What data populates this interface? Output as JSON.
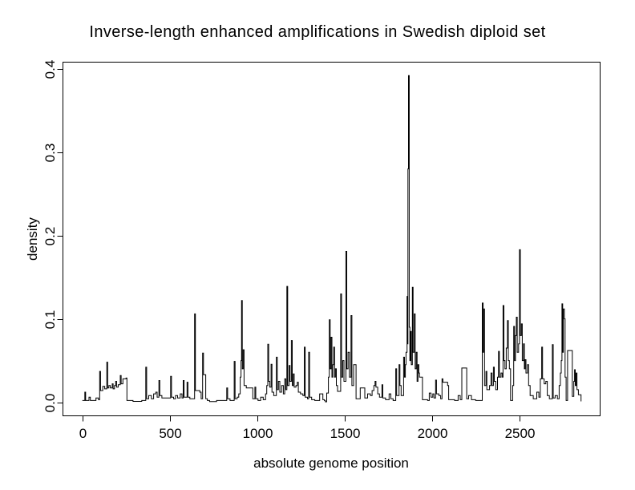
{
  "page": {
    "background": "#ffffff",
    "foreground": "#000000"
  },
  "chart_data": {
    "type": "line",
    "subtype": "step-density-profile",
    "title": "Inverse-length enhanced amplifications in Swedish diploid set",
    "xlabel": "absolute genome position",
    "ylabel": "density",
    "xlim": [
      -110,
      2960
    ],
    "ylim": [
      -0.016,
      0.408
    ],
    "x_ticks": [
      0,
      500,
      1000,
      1500,
      2000,
      2500
    ],
    "x_tick_labels": [
      "0",
      "500",
      "1000",
      "1500",
      "2000",
      "2500"
    ],
    "y_ticks": [
      0.0,
      0.1,
      0.2,
      0.3,
      0.4
    ],
    "y_tick_labels": [
      "0.0",
      "0.1",
      "0.2",
      "0.3",
      "0.4"
    ],
    "grid": false,
    "legend": "none",
    "frame_box": true,
    "line_color": "#000000",
    "background_color": "#ffffff",
    "max_point": {
      "x": 1866,
      "y": 0.392
    },
    "series": [
      [
        0,
        0.002
      ],
      [
        14,
        0.012
      ],
      [
        19,
        0.002
      ],
      [
        38,
        0.006
      ],
      [
        46,
        0.002
      ],
      [
        60,
        0.002
      ],
      [
        78,
        0.005
      ],
      [
        92,
        0.003
      ],
      [
        99,
        0.037
      ],
      [
        104,
        0.014
      ],
      [
        117,
        0.019
      ],
      [
        128,
        0.016
      ],
      [
        140,
        0.048
      ],
      [
        145,
        0.017
      ],
      [
        152,
        0.02
      ],
      [
        160,
        0.017
      ],
      [
        171,
        0.022
      ],
      [
        176,
        0.016
      ],
      [
        184,
        0.02
      ],
      [
        191,
        0.025
      ],
      [
        196,
        0.018
      ],
      [
        205,
        0.021
      ],
      [
        217,
        0.032
      ],
      [
        222,
        0.022
      ],
      [
        232,
        0.028
      ],
      [
        250,
        0.029
      ],
      [
        255,
        0.002
      ],
      [
        290,
        0.001
      ],
      [
        340,
        0.002
      ],
      [
        363,
        0.042
      ],
      [
        368,
        0.004
      ],
      [
        380,
        0.008
      ],
      [
        395,
        0.004
      ],
      [
        408,
        0.01
      ],
      [
        420,
        0.012
      ],
      [
        428,
        0.006
      ],
      [
        438,
        0.026
      ],
      [
        443,
        0.008
      ],
      [
        455,
        0.005
      ],
      [
        505,
        0.031
      ],
      [
        510,
        0.006
      ],
      [
        522,
        0.004
      ],
      [
        533,
        0.008
      ],
      [
        545,
        0.005
      ],
      [
        560,
        0.01
      ],
      [
        570,
        0.005
      ],
      [
        577,
        0.026
      ],
      [
        582,
        0.006
      ],
      [
        599,
        0.024
      ],
      [
        604,
        0.006
      ],
      [
        615,
        0.004
      ],
      [
        642,
        0.106
      ],
      [
        647,
        0.014
      ],
      [
        672,
        0.012
      ],
      [
        680,
        0.004
      ],
      [
        688,
        0.059
      ],
      [
        693,
        0.033
      ],
      [
        702,
        0.033
      ],
      [
        706,
        0.004
      ],
      [
        715,
        0.002
      ],
      [
        728,
        0.0008
      ],
      [
        768,
        0.002
      ],
      [
        826,
        0.017
      ],
      [
        831,
        0.004
      ],
      [
        845,
        0.002
      ],
      [
        869,
        0.049
      ],
      [
        874,
        0.004
      ],
      [
        886,
        0.006
      ],
      [
        895,
        0.01
      ],
      [
        903,
        0.03
      ],
      [
        908,
        0.05
      ],
      [
        911,
        0.122
      ],
      [
        915,
        0.04
      ],
      [
        920,
        0.063
      ],
      [
        925,
        0.02
      ],
      [
        938,
        0.017
      ],
      [
        975,
        0.004
      ],
      [
        987,
        0.018
      ],
      [
        992,
        0.004
      ],
      [
        1005,
        0.002
      ],
      [
        1020,
        0.006
      ],
      [
        1035,
        0.003
      ],
      [
        1048,
        0.01
      ],
      [
        1055,
        0.02
      ],
      [
        1061,
        0.0695
      ],
      [
        1066,
        0.025
      ],
      [
        1072,
        0.018
      ],
      [
        1080,
        0.0455
      ],
      [
        1085,
        0.012
      ],
      [
        1095,
        0.008
      ],
      [
        1110,
        0.054
      ],
      [
        1115,
        0.015
      ],
      [
        1122,
        0.025
      ],
      [
        1130,
        0.012
      ],
      [
        1140,
        0.02
      ],
      [
        1150,
        0.01
      ],
      [
        1158,
        0.028
      ],
      [
        1164,
        0.015
      ],
      [
        1170,
        0.139
      ],
      [
        1175,
        0.02
      ],
      [
        1183,
        0.044
      ],
      [
        1188,
        0.025
      ],
      [
        1196,
        0.074
      ],
      [
        1201,
        0.02
      ],
      [
        1207,
        0.034
      ],
      [
        1212,
        0.018
      ],
      [
        1222,
        0.02
      ],
      [
        1230,
        0.024
      ],
      [
        1236,
        0.012
      ],
      [
        1248,
        0.01
      ],
      [
        1262,
        0.008
      ],
      [
        1270,
        0.066
      ],
      [
        1275,
        0.006
      ],
      [
        1288,
        0.004
      ],
      [
        1295,
        0.06
      ],
      [
        1300,
        0.006
      ],
      [
        1312,
        0.003
      ],
      [
        1330,
        0.002
      ],
      [
        1358,
        0.01
      ],
      [
        1376,
        0.003
      ],
      [
        1385,
        0.002
      ],
      [
        1390,
        0.0005
      ],
      [
        1398,
        0.011
      ],
      [
        1408,
        0.03
      ],
      [
        1413,
        0.099
      ],
      [
        1418,
        0.04
      ],
      [
        1423,
        0.078
      ],
      [
        1428,
        0.03
      ],
      [
        1433,
        0.045
      ],
      [
        1438,
        0.066
      ],
      [
        1443,
        0.03
      ],
      [
        1448,
        0.04
      ],
      [
        1453,
        0.02
      ],
      [
        1460,
        0.013
      ],
      [
        1472,
        0.013
      ],
      [
        1478,
        0.13
      ],
      [
        1483,
        0.03
      ],
      [
        1490,
        0.05
      ],
      [
        1497,
        0.025
      ],
      [
        1508,
        0.181
      ],
      [
        1513,
        0.04
      ],
      [
        1520,
        0.06
      ],
      [
        1528,
        0.03
      ],
      [
        1537,
        0.104
      ],
      [
        1542,
        0.02
      ],
      [
        1552,
        0.045
      ],
      [
        1566,
        0.004
      ],
      [
        1590,
        0.017
      ],
      [
        1616,
        0.005
      ],
      [
        1632,
        0.01
      ],
      [
        1648,
        0.008
      ],
      [
        1658,
        0.014
      ],
      [
        1668,
        0.02
      ],
      [
        1675,
        0.025
      ],
      [
        1680,
        0.018
      ],
      [
        1690,
        0.01
      ],
      [
        1700,
        0.006
      ],
      [
        1714,
        0.021
      ],
      [
        1719,
        0.005
      ],
      [
        1735,
        0.003
      ],
      [
        1755,
        0.01
      ],
      [
        1765,
        0.004
      ],
      [
        1778,
        0.002
      ],
      [
        1793,
        0.04
      ],
      [
        1798,
        0.008
      ],
      [
        1812,
        0.045
      ],
      [
        1817,
        0.02
      ],
      [
        1824,
        0.008
      ],
      [
        1838,
        0.054
      ],
      [
        1843,
        0.03
      ],
      [
        1848,
        0.045
      ],
      [
        1852,
        0.06
      ],
      [
        1858,
        0.127
      ],
      [
        1861,
        0.07
      ],
      [
        1863,
        0.28
      ],
      [
        1866,
        0.392
      ],
      [
        1870,
        0.09
      ],
      [
        1874,
        0.05
      ],
      [
        1878,
        0.085
      ],
      [
        1882,
        0.045
      ],
      [
        1888,
        0.138
      ],
      [
        1892,
        0.06
      ],
      [
        1899,
        0.106
      ],
      [
        1904,
        0.04
      ],
      [
        1910,
        0.06
      ],
      [
        1915,
        0.025
      ],
      [
        1920,
        0.045
      ],
      [
        1925,
        0.035
      ],
      [
        1929,
        0.03
      ],
      [
        1946,
        0.003
      ],
      [
        1975,
        0.002
      ],
      [
        1985,
        0.011
      ],
      [
        1995,
        0.006
      ],
      [
        2005,
        0.01
      ],
      [
        2012,
        0.005
      ],
      [
        2021,
        0.0265
      ],
      [
        2026,
        0.01
      ],
      [
        2040,
        0.008
      ],
      [
        2050,
        0.004
      ],
      [
        2058,
        0.028
      ],
      [
        2063,
        0.024
      ],
      [
        2090,
        0.02
      ],
      [
        2096,
        0.003
      ],
      [
        2130,
        0.002
      ],
      [
        2150,
        0.008
      ],
      [
        2162,
        0.003
      ],
      [
        2171,
        0.041
      ],
      [
        2199,
        0.004
      ],
      [
        2210,
        0.008
      ],
      [
        2226,
        0.003
      ],
      [
        2250,
        0.002
      ],
      [
        2288,
        0.119
      ],
      [
        2293,
        0.06
      ],
      [
        2296,
        0.112
      ],
      [
        2301,
        0.02
      ],
      [
        2309,
        0.037
      ],
      [
        2314,
        0.015
      ],
      [
        2330,
        0.02
      ],
      [
        2338,
        0.035
      ],
      [
        2344,
        0.02
      ],
      [
        2352,
        0.042
      ],
      [
        2357,
        0.025
      ],
      [
        2365,
        0.015
      ],
      [
        2375,
        0.03
      ],
      [
        2381,
        0.061
      ],
      [
        2386,
        0.03
      ],
      [
        2395,
        0.035
      ],
      [
        2402,
        0.03
      ],
      [
        2407,
        0.116
      ],
      [
        2412,
        0.05
      ],
      [
        2418,
        0.04
      ],
      [
        2425,
        0.065
      ],
      [
        2432,
        0.098
      ],
      [
        2437,
        0.05
      ],
      [
        2443,
        0.04
      ],
      [
        2450,
        0.002
      ],
      [
        2462,
        0.02
      ],
      [
        2468,
        0.091
      ],
      [
        2473,
        0.05
      ],
      [
        2478,
        0.08
      ],
      [
        2483,
        0.102
      ],
      [
        2488,
        0.06
      ],
      [
        2496,
        0.07
      ],
      [
        2501,
        0.183
      ],
      [
        2506,
        0.08
      ],
      [
        2512,
        0.094
      ],
      [
        2517,
        0.05
      ],
      [
        2524,
        0.07
      ],
      [
        2529,
        0.04
      ],
      [
        2533,
        0.051
      ],
      [
        2538,
        0.035
      ],
      [
        2547,
        0.045
      ],
      [
        2553,
        0.02
      ],
      [
        2562,
        0.008
      ],
      [
        2580,
        0.004
      ],
      [
        2600,
        0.012
      ],
      [
        2612,
        0.006
      ],
      [
        2620,
        0.028
      ],
      [
        2628,
        0.066
      ],
      [
        2633,
        0.028
      ],
      [
        2642,
        0.022
      ],
      [
        2652,
        0.025
      ],
      [
        2660,
        0.008
      ],
      [
        2672,
        0.004
      ],
      [
        2689,
        0.069
      ],
      [
        2694,
        0.005
      ],
      [
        2705,
        0.008
      ],
      [
        2718,
        0.004
      ],
      [
        2728,
        0.02
      ],
      [
        2735,
        0.035
      ],
      [
        2740,
        0.05
      ],
      [
        2744,
        0.118
      ],
      [
        2748,
        0.06
      ],
      [
        2752,
        0.112
      ],
      [
        2758,
        0.1
      ],
      [
        2762,
        0.03
      ],
      [
        2768,
        0.002
      ],
      [
        2776,
        0.062
      ],
      [
        2803,
        0.007
      ],
      [
        2812,
        0.025
      ],
      [
        2816,
        0.039
      ],
      [
        2820,
        0.02
      ],
      [
        2825,
        0.035
      ],
      [
        2830,
        0.015
      ],
      [
        2838,
        0.009
      ],
      [
        2850,
        0.009
      ],
      [
        2853,
        0.001
      ]
    ]
  }
}
